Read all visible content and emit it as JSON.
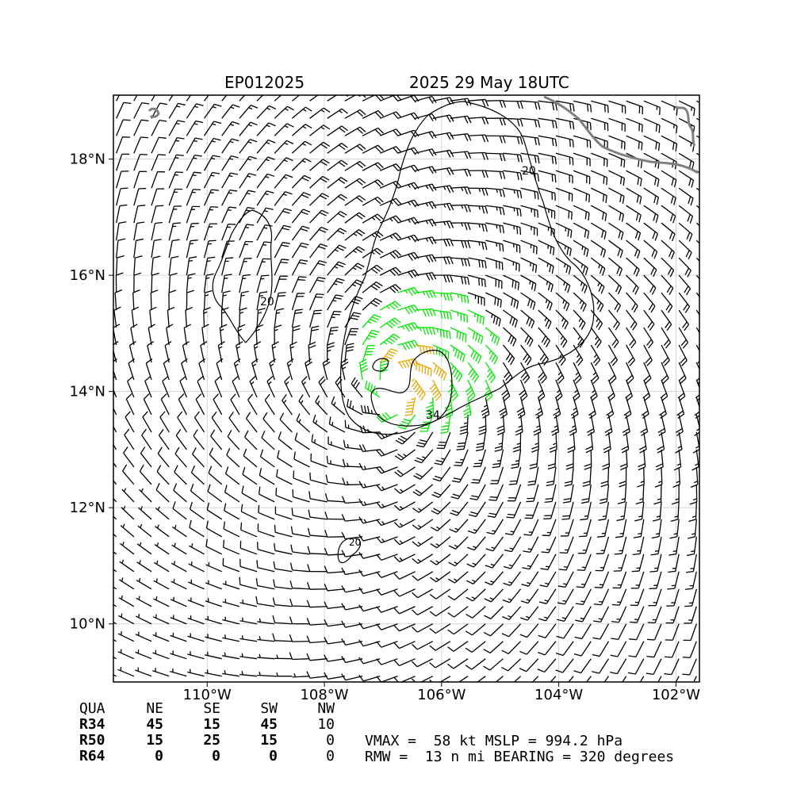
{
  "header": {
    "storm_id": "EP012025",
    "valid_time": "2025 29 May 18UTC"
  },
  "map": {
    "lon_range": [
      -111.6,
      -101.6
    ],
    "lat_range": [
      9.0,
      19.1
    ],
    "lon_ticks": [
      {
        "value": -110,
        "label": "110°W"
      },
      {
        "value": -108,
        "label": "108°W"
      },
      {
        "value": -106,
        "label": "106°W"
      },
      {
        "value": -104,
        "label": "104°W"
      },
      {
        "value": -102,
        "label": "102°W"
      }
    ],
    "lat_ticks": [
      {
        "value": 10,
        "label": "10°N"
      },
      {
        "value": 12,
        "label": "12°N"
      },
      {
        "value": 14,
        "label": "14°N"
      },
      {
        "value": 16,
        "label": "16°N"
      },
      {
        "value": 18,
        "label": "18°N"
      }
    ],
    "grid": true,
    "storm_center": {
      "lon": -106.8,
      "lat": 14.1
    },
    "rmw_nmi": 13,
    "colors": {
      "barb_default": "#000000",
      "barb_34kt": "#00e600",
      "barb_50kt": "#e6a800",
      "coastline": "#808080",
      "contour": "#000000"
    },
    "contour_labels": [
      "20",
      "34",
      "20",
      "20"
    ]
  },
  "wind_radii": {
    "headers": [
      "QUA",
      "NE",
      "SE",
      "SW",
      "NW"
    ],
    "rows": [
      {
        "label": "R34",
        "values": [
          "45",
          "15",
          "45",
          "10"
        ]
      },
      {
        "label": "R50",
        "values": [
          "15",
          "25",
          "15",
          "0"
        ]
      },
      {
        "label": "R64",
        "values": [
          "0",
          "0",
          "0",
          "0"
        ]
      }
    ]
  },
  "stats": {
    "line1": "VMAX =  58 kt MSLP = 994.2 hPa",
    "line2": "RMW =  13 n mi BEARING = 320 degrees"
  }
}
